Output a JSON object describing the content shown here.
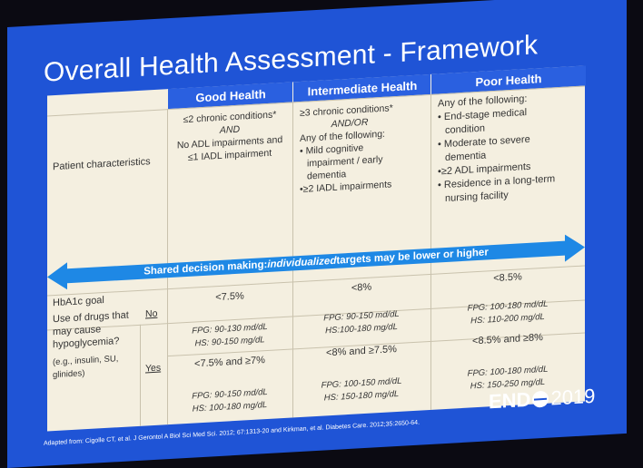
{
  "title": "Overall Health Assessment - Framework",
  "columns": {
    "good": "Good Health",
    "intermediate": "Intermediate Health",
    "poor": "Poor Health"
  },
  "rows": {
    "patient_characteristics": "Patient characteristics",
    "hba1c_goal": "HbA1c goal",
    "drugs_question": "Use of drugs that may cause hypoglycemia?",
    "drugs_examples": "(e.g., insulin, SU, glinides)",
    "no": "No",
    "yes": "Yes"
  },
  "good": {
    "l1": "≤2 chronic conditions*",
    "l2": "AND",
    "l3": "No ADL impairments and",
    "l4": "≤1 IADL impairment",
    "no_goal": "<7.5%",
    "no_fpg": "FPG: 90-130 md/dL",
    "no_hs": "HS: 90-150 mg/dL",
    "yes_goal": "<7.5% and ≥7%",
    "yes_fpg": "FPG: 90-150 md/dL",
    "yes_hs": "HS: 100-180 mg/dL"
  },
  "intermediate": {
    "l1": "≥3 chronic conditions*",
    "l2": "AND/OR",
    "l3": "Any of the following:",
    "l4": "• Mild cognitive",
    "l5": "impairment / early",
    "l6": "dementia",
    "l7": "•≥2 IADL impairments",
    "no_goal": "<8%",
    "no_fpg": "FPG: 90-150 md/dL",
    "no_hs": "HS:100-180 mg/dL",
    "yes_goal": "<8% and ≥7.5%",
    "yes_fpg": "FPG: 100-150 md/dL",
    "yes_hs": "HS: 150-180 mg/dL"
  },
  "poor": {
    "l1": "Any of the following:",
    "l2": "• End-stage medical",
    "l3": "condition",
    "l4": "• Moderate to severe",
    "l5": "dementia",
    "l6": "•≥2 ADL impairments",
    "l7": "• Residence in a long-term",
    "l8": "nursing facility",
    "no_goal": "<8.5%",
    "no_fpg": "FPG: 100-180 md/dL",
    "no_hs": "HS: 110-200 mg/dL",
    "yes_goal": "<8.5% and ≥8%",
    "yes_fpg": "FPG: 100-180 md/dL",
    "yes_hs": "HS: 150-250 mg/dL"
  },
  "arrow": {
    "text_normal": "Shared decision making: ",
    "text_italic": "individualized",
    "text_after": " targets may be lower or higher",
    "color": "#1e88e5"
  },
  "footer": "Adapted from: Cigolle CT, et al. J Gerontol A Biol Sci Med Sci. 2012; 67:1313-20 and Kirkman, et al. Diabetes Care. 2012;35:2650-64.",
  "logo": {
    "left": "END",
    "right": "2019"
  }
}
